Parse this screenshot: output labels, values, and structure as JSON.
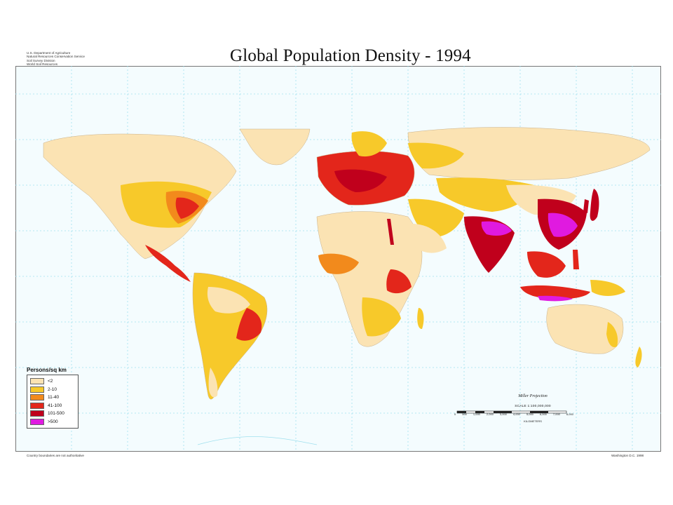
{
  "header": {
    "agency_lines": [
      "U.S. Department of Agriculture",
      "Natural Resources Conservation Service",
      "Soil Survey Division",
      "World Soil Resources"
    ],
    "title": "Global Population Density - 1994"
  },
  "legend": {
    "title": "Persons/sq km",
    "items": [
      {
        "label": "<2",
        "color": "#fbe3b3"
      },
      {
        "label": "2-10",
        "color": "#f7c92a"
      },
      {
        "label": "11-40",
        "color": "#f28a1c"
      },
      {
        "label": "41-100",
        "color": "#e3261b"
      },
      {
        "label": "101-500",
        "color": "#c0001c"
      },
      {
        "label": ">500",
        "color": "#e01ae0"
      }
    ]
  },
  "scale": {
    "projection": "Miller Projection",
    "scale_text": "SCALE 1:100,000,000",
    "ticks": [
      "0",
      "500",
      "1,000",
      "2,000",
      "3,000",
      "4,000",
      "5,000",
      "6,000",
      "7,000",
      "8,000"
    ],
    "unit": "KILOMETERS"
  },
  "footer": {
    "left": "Country boundaries are not authoritative",
    "right": "Washington D.C. 1998"
  },
  "map": {
    "ocean_color": "#f4fcfe",
    "graticule_color": "#9fe0ee"
  }
}
